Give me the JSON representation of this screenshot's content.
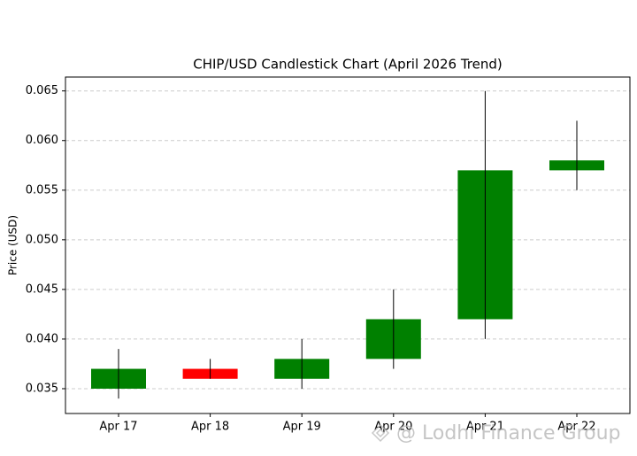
{
  "chart_data": {
    "type": "candlestick",
    "title": "CHIP/USD Candlestick Chart (April 2026 Trend)",
    "y_label": "Price (USD)",
    "categories": [
      "Apr 17",
      "Apr 18",
      "Apr 19",
      "Apr 20",
      "Apr 21",
      "Apr 22"
    ],
    "open": [
      0.035,
      0.037,
      0.036,
      0.038,
      0.042,
      0.057
    ],
    "high": [
      0.039,
      0.038,
      0.04,
      0.045,
      0.065,
      0.062
    ],
    "low": [
      0.034,
      0.036,
      0.035,
      0.037,
      0.04,
      0.055
    ],
    "close": [
      0.037,
      0.036,
      0.038,
      0.042,
      0.057,
      0.058
    ],
    "up_color": "green",
    "down_color": "red",
    "ylim": [
      0.0325,
      0.0664
    ],
    "yticks": [
      0.035,
      {
        "value": 0.04,
        "label": "0.040"
      },
      0.045,
      {
        "value": 0.05,
        "label": "0.050"
      },
      0.055,
      {
        "value": 0.06,
        "label": "0.060"
      },
      0.065
    ],
    "grid": true,
    "watermark": "@ Lodhi Finance Group"
  }
}
